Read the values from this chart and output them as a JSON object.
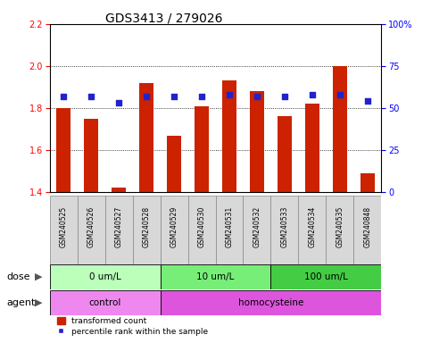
{
  "title": "GDS3413 / 279026",
  "samples": [
    "GSM240525",
    "GSM240526",
    "GSM240527",
    "GSM240528",
    "GSM240529",
    "GSM240530",
    "GSM240531",
    "GSM240532",
    "GSM240533",
    "GSM240534",
    "GSM240535",
    "GSM240848"
  ],
  "bar_values": [
    1.8,
    1.75,
    1.42,
    1.92,
    1.67,
    1.81,
    1.93,
    1.88,
    1.76,
    1.82,
    2.0,
    1.49
  ],
  "dot_values": [
    57,
    57,
    53,
    57,
    57,
    57,
    58,
    57,
    57,
    58,
    58,
    54
  ],
  "bar_color": "#cc2200",
  "dot_color": "#2222cc",
  "ylim_left": [
    1.4,
    2.2
  ],
  "ylim_right": [
    0,
    100
  ],
  "yticks_left": [
    1.4,
    1.6,
    1.8,
    2.0,
    2.2
  ],
  "yticks_right": [
    0,
    25,
    50,
    75,
    100
  ],
  "ytick_labels_right": [
    "0",
    "25",
    "50",
    "75",
    "100%"
  ],
  "dose_groups": [
    {
      "label": "0 um/L",
      "start": 0,
      "end": 4,
      "color": "#bbffbb"
    },
    {
      "label": "10 um/L",
      "start": 4,
      "end": 8,
      "color": "#77ee77"
    },
    {
      "label": "100 um/L",
      "start": 8,
      "end": 12,
      "color": "#44cc44"
    }
  ],
  "agent_groups": [
    {
      "label": "control",
      "start": 0,
      "end": 4,
      "color": "#ee88ee"
    },
    {
      "label": "homocysteine",
      "start": 4,
      "end": 12,
      "color": "#dd55dd"
    }
  ],
  "dose_label": "dose",
  "agent_label": "agent",
  "legend_bar": "transformed count",
  "legend_dot": "percentile rank within the sample",
  "title_fontsize": 10,
  "tick_fontsize": 7,
  "sample_fontsize": 5.5,
  "row_fontsize": 7.5,
  "legend_fontsize": 6.5
}
